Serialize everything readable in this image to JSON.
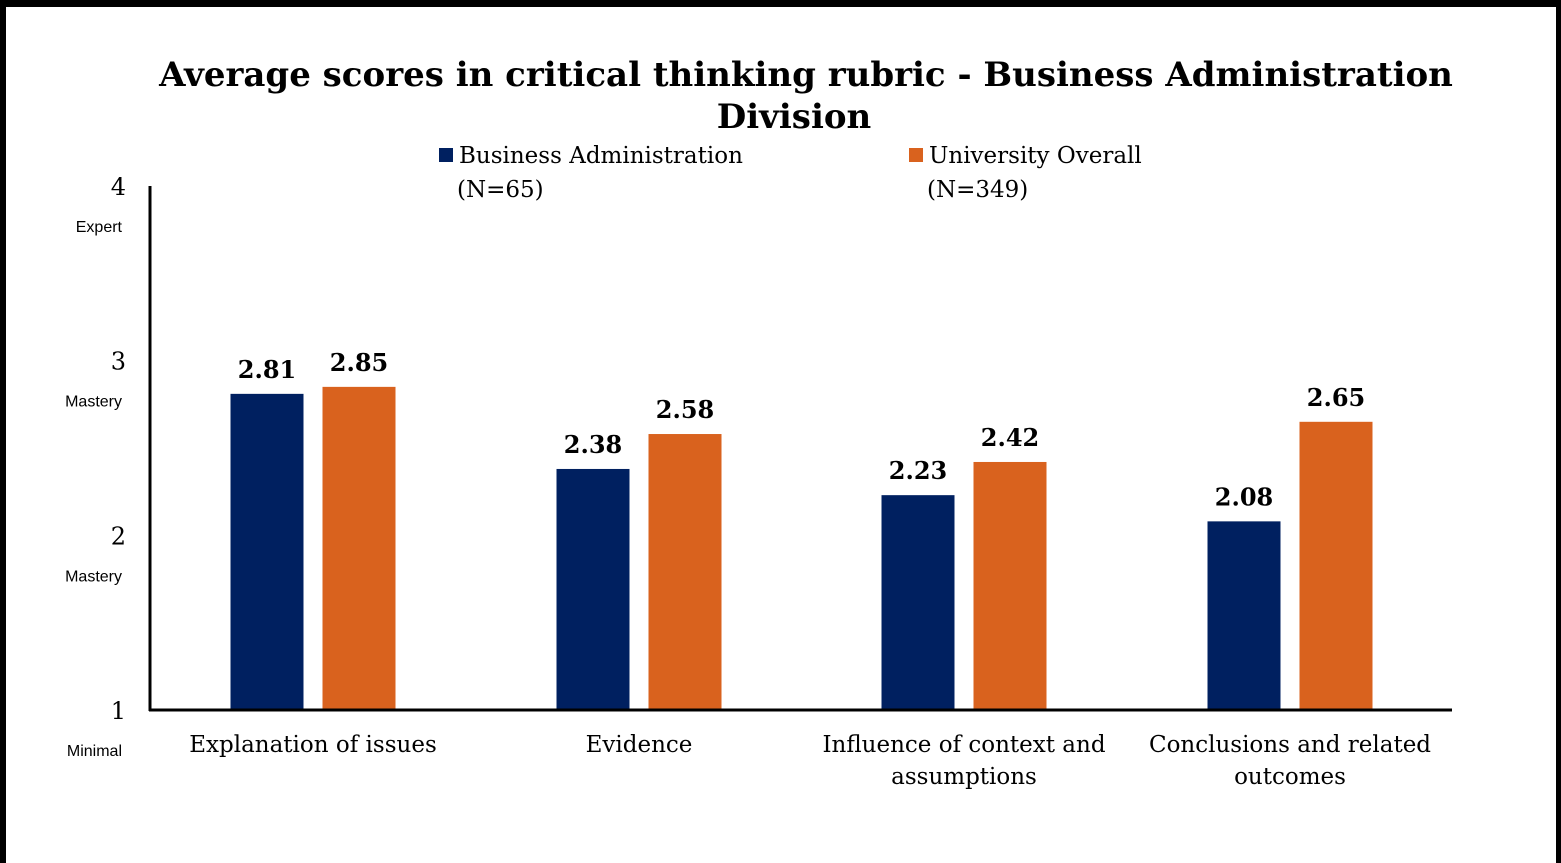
{
  "chart_data": {
    "type": "bar",
    "title_line1": "Average scores in critical thinking rubric - Business Administration",
    "title_line2": "Division",
    "categories": [
      [
        "Explanation of issues"
      ],
      [
        "Evidence"
      ],
      [
        "Influence of context and",
        "assumptions"
      ],
      [
        "Conclusions and related",
        "outcomes"
      ]
    ],
    "series": [
      {
        "name": [
          "Business Administration",
          "(N=65)"
        ],
        "color": "#002060",
        "values": [
          2.81,
          2.38,
          2.23,
          2.08
        ]
      },
      {
        "name": [
          "University Overall",
          "(N=349)"
        ],
        "color": "#D9621E",
        "values": [
          2.85,
          2.58,
          2.42,
          2.65
        ]
      }
    ],
    "ylim": [
      1,
      4
    ],
    "y_ticks": [
      {
        "value": 1,
        "label": "1",
        "sublabel": "Minimal"
      },
      {
        "value": 2,
        "label": "2",
        "sublabel": "Mastery"
      },
      {
        "value": 3,
        "label": "3",
        "sublabel": "Mastery"
      },
      {
        "value": 4,
        "label": "4",
        "sublabel": "Expert"
      }
    ],
    "legend_position": "top",
    "grid": false
  }
}
